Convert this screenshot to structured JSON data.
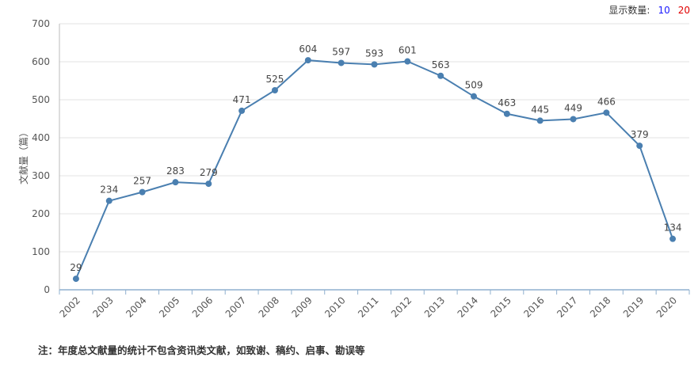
{
  "display_count": {
    "label": "显示数量:",
    "options": [
      "10",
      "20"
    ],
    "option_colors": [
      "#1a1aff",
      "#e00000"
    ]
  },
  "footnote": "注：年度总文献量的统计不包含资讯类文献，如致谢、稿约、启事、勘误等",
  "chart_data": {
    "type": "line",
    "title": "",
    "xlabel": "",
    "ylabel": "文献量（篇）",
    "ylim": [
      0,
      700
    ],
    "yticks": [
      0,
      100,
      200,
      300,
      400,
      500,
      600,
      700
    ],
    "grid": true,
    "series_color": "#4a7fb0",
    "categories": [
      "2002",
      "2003",
      "2004",
      "2005",
      "2006",
      "2007",
      "2008",
      "2009",
      "2010",
      "2011",
      "2012",
      "2013",
      "2014",
      "2015",
      "2016",
      "2017",
      "2018",
      "2019",
      "2020"
    ],
    "values": [
      29,
      234,
      257,
      283,
      279,
      471,
      525,
      604,
      597,
      593,
      601,
      563,
      509,
      463,
      445,
      449,
      466,
      379,
      134
    ]
  }
}
